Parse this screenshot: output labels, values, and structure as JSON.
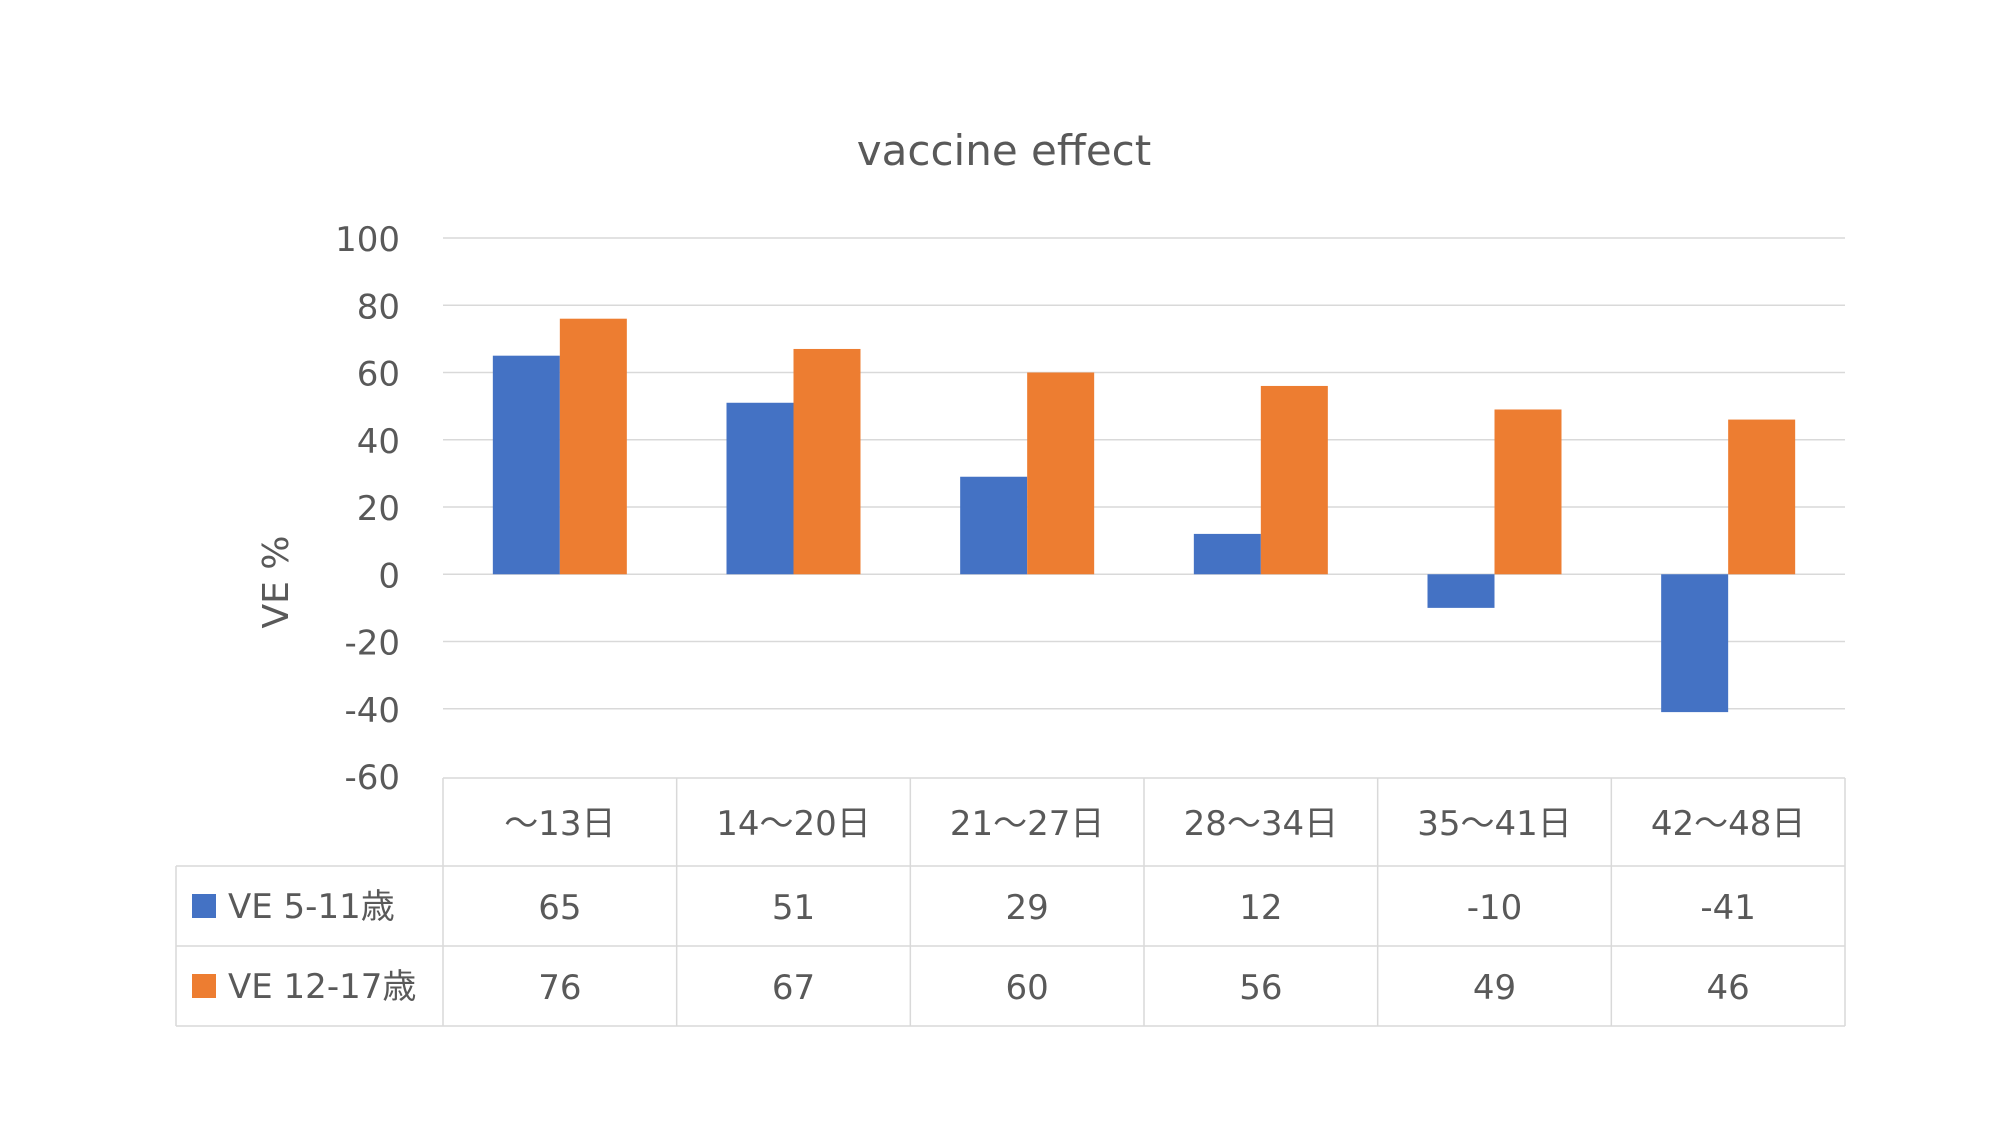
{
  "chart_data": {
    "type": "bar",
    "title": "vaccine effect",
    "ylabel": "VE %",
    "xlabel": "",
    "ylim": [
      -60,
      100
    ],
    "yticks": [
      100,
      80,
      60,
      40,
      20,
      0,
      -20,
      -40,
      -60
    ],
    "grid": true,
    "legend": "data-table",
    "categories": [
      "～13日",
      "14～20日",
      "21～27日",
      "28～34日",
      "35～41日",
      "42～48日"
    ],
    "series": [
      {
        "name": "VE 5-11歳",
        "color": "#4472C4",
        "values": [
          65,
          51,
          29,
          12,
          -10,
          -41
        ]
      },
      {
        "name": "VE 12-17歳",
        "color": "#ED7D31",
        "values": [
          76,
          67,
          60,
          56,
          49,
          46
        ]
      }
    ]
  }
}
